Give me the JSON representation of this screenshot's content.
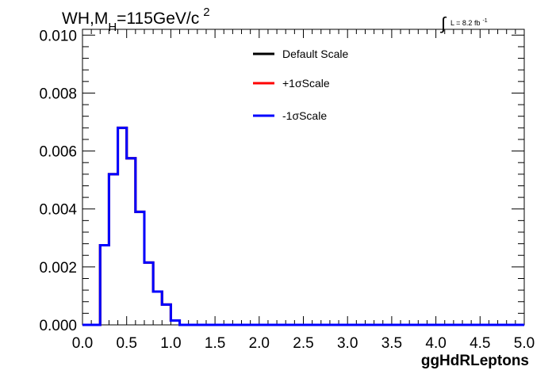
{
  "chart_data": {
    "type": "line",
    "title_parts": {
      "prefix": "WH,M",
      "subscript": "H",
      "middle": "=115GeV/c",
      "superscript": "2"
    },
    "lumi_parts": {
      "integral": "∫",
      "text": "L = 8.2 fb",
      "superscript": "-1"
    },
    "xlabel": "ggHdRLeptons",
    "ylabel": "",
    "xlim": [
      0.0,
      5.0
    ],
    "ylim": [
      0.0,
      0.0102
    ],
    "x_ticks": [
      "0.0",
      "0.5",
      "1.0",
      "1.5",
      "2.0",
      "2.5",
      "3.0",
      "3.5",
      "4.0",
      "4.5",
      "5.0"
    ],
    "y_ticks": [
      "0.000",
      "0.002",
      "0.004",
      "0.006",
      "0.008",
      "0.010"
    ],
    "grid": false,
    "legend_position": "top-right",
    "bin_edges": [
      0.0,
      0.1,
      0.2,
      0.3,
      0.4,
      0.5,
      0.6,
      0.7,
      0.8,
      0.9,
      1.0,
      1.1,
      1.2,
      1.3,
      1.4,
      1.5,
      1.6,
      1.7,
      1.8,
      1.9,
      2.0,
      2.1,
      2.2,
      2.3,
      2.4,
      2.5,
      2.6,
      2.7,
      2.8,
      2.9,
      3.0,
      3.1,
      3.2,
      3.3,
      3.4,
      3.5,
      3.6,
      3.7,
      3.8,
      3.9,
      4.0,
      4.1,
      4.2,
      4.3,
      4.4,
      4.5,
      4.6,
      4.7,
      4.8,
      4.9,
      5.0
    ],
    "series": [
      {
        "name": "Default Scale",
        "color": "#000000",
        "values": [
          0,
          0,
          0.00275,
          0.0052,
          0.0068,
          0.00575,
          0.0039,
          0.00215,
          0.00115,
          0.0007,
          0.00015,
          0,
          0,
          0,
          0,
          0,
          0,
          0,
          0,
          0,
          0,
          0,
          0,
          0,
          0,
          0,
          0,
          0,
          0,
          0,
          0,
          0,
          0,
          0,
          0,
          0,
          0,
          0,
          0,
          0,
          0,
          0,
          0,
          0,
          0,
          0,
          0,
          0,
          0,
          0
        ]
      },
      {
        "name": "+1σScale",
        "color": "#ff0000",
        "values": [
          0,
          0,
          0.00275,
          0.0052,
          0.0068,
          0.00575,
          0.0039,
          0.00215,
          0.00115,
          0.0007,
          0.00015,
          0,
          0,
          0,
          0,
          0,
          0,
          0,
          0,
          0,
          0,
          0,
          0,
          0,
          0,
          0,
          0,
          0,
          0,
          0,
          0,
          0,
          0,
          0,
          0,
          0,
          0,
          0,
          0,
          0,
          0,
          0,
          0,
          0,
          0,
          0,
          0,
          0,
          0,
          0
        ]
      },
      {
        "name": "-1σScale",
        "color": "#0000ff",
        "values": [
          0,
          0,
          0.00275,
          0.0052,
          0.0068,
          0.00575,
          0.0039,
          0.00215,
          0.00115,
          0.0007,
          0.00015,
          0,
          0,
          0,
          0,
          0,
          0,
          0,
          0,
          0,
          0,
          0,
          0,
          0,
          0,
          0,
          0,
          0,
          0,
          0,
          0,
          0,
          0,
          0,
          0,
          0,
          0,
          0,
          0,
          0,
          0,
          0,
          0,
          0,
          0,
          0,
          0,
          0,
          0,
          0
        ]
      }
    ]
  }
}
